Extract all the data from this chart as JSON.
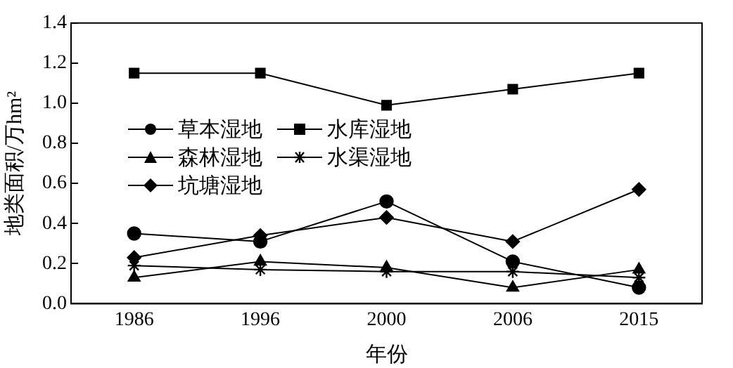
{
  "chart_data": {
    "type": "line",
    "xlabel": "年份",
    "ylabel": "地类面积/万hm²",
    "categories": [
      "1986",
      "1996",
      "2000",
      "2006",
      "2015"
    ],
    "series": [
      {
        "name": "草本湿地",
        "color": "#000000",
        "marker": "circle",
        "values": [
          0.35,
          0.31,
          0.51,
          0.21,
          0.08
        ]
      },
      {
        "name": "森林湿地",
        "color": "#000000",
        "marker": "triangle",
        "values": [
          0.13,
          0.21,
          0.18,
          0.08,
          0.17
        ]
      },
      {
        "name": "坑塘湿地",
        "color": "#000000",
        "marker": "diamond",
        "values": [
          0.23,
          0.34,
          0.43,
          0.31,
          0.57
        ]
      },
      {
        "name": "水库湿地",
        "color": "#000000",
        "marker": "square",
        "values": [
          1.15,
          1.15,
          0.99,
          1.07,
          1.15
        ]
      },
      {
        "name": "水渠湿地",
        "color": "#000000",
        "marker": "cross",
        "values": [
          0.19,
          0.17,
          0.16,
          0.16,
          0.13
        ]
      }
    ],
    "ylim": [
      0,
      1.4
    ],
    "yticks": [
      {
        "value": 0,
        "label": "0.0"
      },
      {
        "value": 0.2,
        "label": "0.2"
      },
      {
        "value": 0.4,
        "label": "0.4"
      },
      {
        "value": 0.6,
        "label": "0.6"
      },
      {
        "value": 0.8,
        "label": "0.8"
      },
      {
        "value": 1,
        "label": "1.0"
      },
      {
        "value": 1.2,
        "label": "1.2"
      },
      {
        "value": 1.4,
        "label": "1.4"
      }
    ],
    "grid": false,
    "legend": "left",
    "line_style": "solid"
  }
}
